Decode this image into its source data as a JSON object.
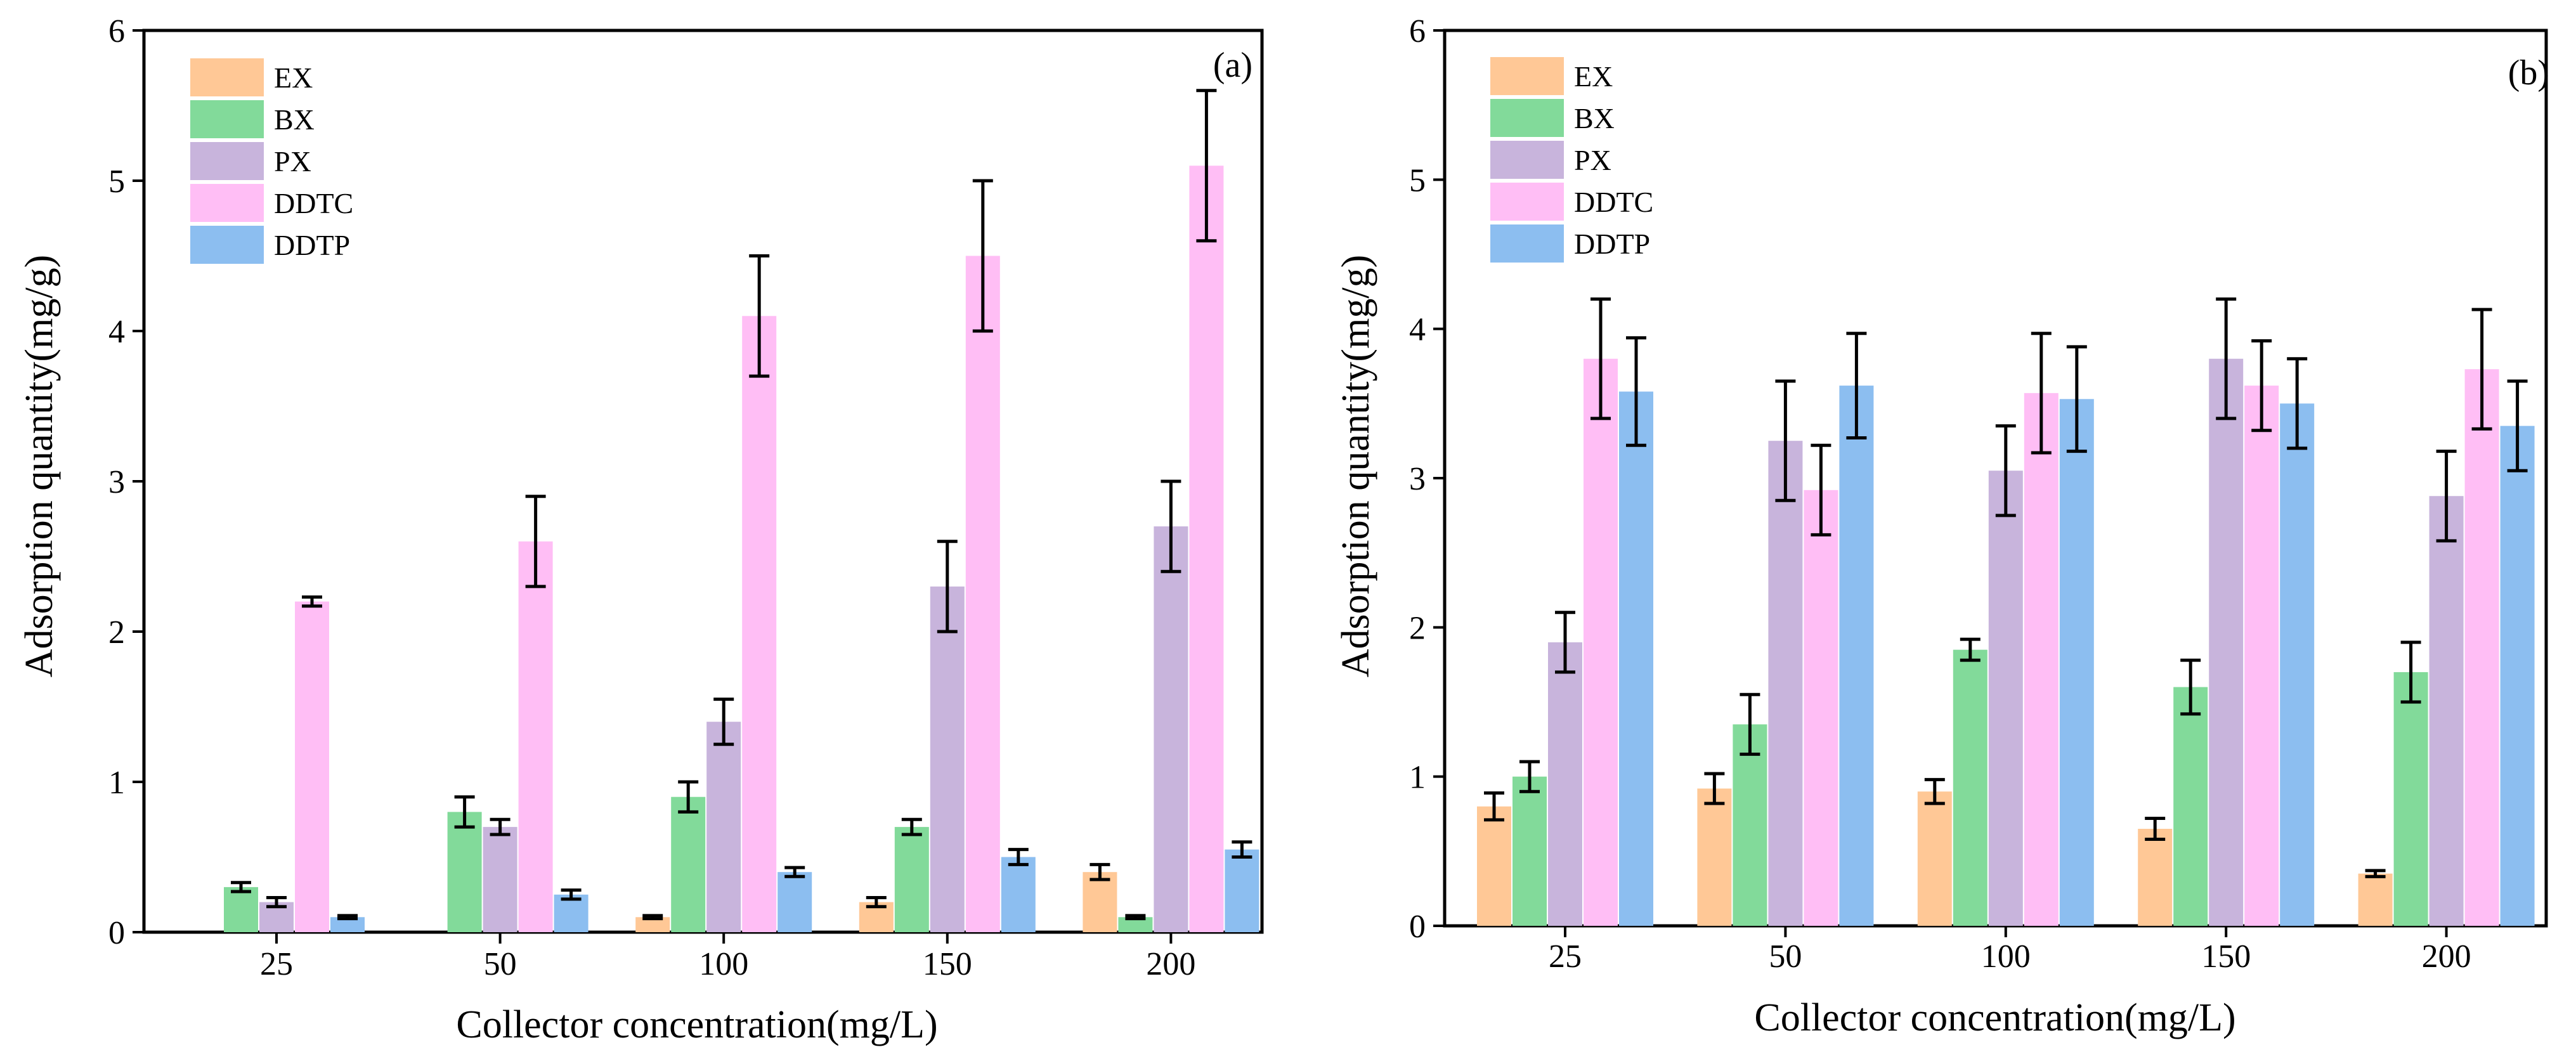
{
  "chart_data": [
    {
      "type": "bar",
      "panel_label": "(a)",
      "xlabel": "Collector concentration(mg/L)",
      "ylabel": "Adsorption quantity(mg/g)",
      "ylim": [
        0,
        6
      ],
      "yticks": [
        "0",
        "1",
        "2",
        "3",
        "4",
        "5",
        "6"
      ],
      "categories": [
        "25",
        "50",
        "100",
        "150",
        "200"
      ],
      "legend_position": "top-left",
      "grid": false,
      "series": [
        {
          "name": "EX",
          "color": "#FFC896",
          "values": [
            null,
            null,
            0.1,
            0.2,
            0.4
          ],
          "errors": [
            null,
            null,
            0.01,
            0.03,
            0.05
          ]
        },
        {
          "name": "BX",
          "color": "#82DA9A",
          "values": [
            0.3,
            0.8,
            0.9,
            0.7,
            0.1
          ],
          "errors": [
            0.03,
            0.1,
            0.1,
            0.05,
            0.01
          ]
        },
        {
          "name": "PX",
          "color": "#C8B4DC",
          "values": [
            0.2,
            0.7,
            1.4,
            2.3,
            2.7
          ],
          "errors": [
            0.03,
            0.05,
            0.15,
            0.3,
            0.3
          ]
        },
        {
          "name": "DDTC",
          "color": "#FFBEF5",
          "values": [
            2.2,
            2.6,
            4.1,
            4.5,
            5.1
          ],
          "errors": [
            0.03,
            0.3,
            0.4,
            0.5,
            0.5
          ]
        },
        {
          "name": "DDTP",
          "color": "#8CBEF0",
          "values": [
            0.1,
            0.25,
            0.4,
            0.5,
            0.55
          ],
          "errors": [
            0.01,
            0.03,
            0.03,
            0.05,
            0.05
          ]
        }
      ]
    },
    {
      "type": "bar",
      "panel_label": "(b)",
      "xlabel": "Collector concentration(mg/L)",
      "ylabel": "Adsorption quantity(mg/g)",
      "ylim": [
        0,
        6
      ],
      "yticks": [
        "0",
        "1",
        "2",
        "3",
        "4",
        "5",
        "6"
      ],
      "categories": [
        "25",
        "50",
        "100",
        "150",
        "200"
      ],
      "legend_position": "top-left",
      "grid": false,
      "series": [
        {
          "name": "EX",
          "color": "#FFC896",
          "values": [
            0.8,
            0.92,
            0.9,
            0.65,
            0.35
          ],
          "errors": [
            0.09,
            0.1,
            0.08,
            0.07,
            0.02
          ]
        },
        {
          "name": "BX",
          "color": "#82DA9A",
          "values": [
            1.0,
            1.35,
            1.85,
            1.6,
            1.7
          ],
          "errors": [
            0.1,
            0.2,
            0.07,
            0.18,
            0.2
          ]
        },
        {
          "name": "PX",
          "color": "#C8B4DC",
          "values": [
            1.9,
            3.25,
            3.05,
            3.8,
            2.88
          ],
          "errors": [
            0.2,
            0.4,
            0.3,
            0.4,
            0.3
          ]
        },
        {
          "name": "DDTC",
          "color": "#FFBEF5",
          "values": [
            3.8,
            2.92,
            3.57,
            3.62,
            3.73
          ],
          "errors": [
            0.4,
            0.3,
            0.4,
            0.3,
            0.4
          ]
        },
        {
          "name": "DDTP",
          "color": "#8CBEF0",
          "values": [
            3.58,
            3.62,
            3.53,
            3.5,
            3.35
          ],
          "errors": [
            0.36,
            0.35,
            0.35,
            0.3,
            0.3
          ]
        }
      ]
    }
  ]
}
